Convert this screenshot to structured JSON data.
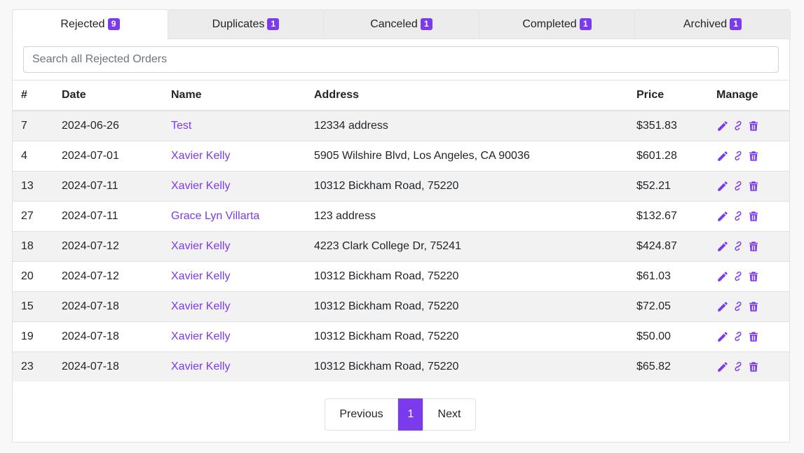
{
  "tabs": [
    {
      "label": "Rejected",
      "count": "9"
    },
    {
      "label": "Duplicates",
      "count": "1"
    },
    {
      "label": "Canceled",
      "count": "1"
    },
    {
      "label": "Completed",
      "count": "1"
    },
    {
      "label": "Archived",
      "count": "1"
    }
  ],
  "search": {
    "placeholder": "Search all Rejected Orders"
  },
  "table": {
    "headers": {
      "id": "#",
      "date": "Date",
      "name": "Name",
      "address": "Address",
      "price": "Price",
      "manage": "Manage"
    },
    "rows": [
      {
        "id": "7",
        "date": "2024-06-26",
        "name": "Test",
        "address": "12334 address",
        "price": "$351.83"
      },
      {
        "id": "4",
        "date": "2024-07-01",
        "name": "Xavier Kelly",
        "address": "5905 Wilshire Blvd, Los Angeles, CA 90036",
        "price": "$601.28"
      },
      {
        "id": "13",
        "date": "2024-07-11",
        "name": "Xavier Kelly",
        "address": "10312 Bickham Road, 75220",
        "price": "$52.21"
      },
      {
        "id": "27",
        "date": "2024-07-11",
        "name": "Grace Lyn Villarta",
        "address": "123 address",
        "price": "$132.67"
      },
      {
        "id": "18",
        "date": "2024-07-12",
        "name": "Xavier Kelly",
        "address": "4223 Clark College Dr, 75241",
        "price": "$424.87"
      },
      {
        "id": "20",
        "date": "2024-07-12",
        "name": "Xavier Kelly",
        "address": "10312 Bickham Road, 75220",
        "price": "$61.03"
      },
      {
        "id": "15",
        "date": "2024-07-18",
        "name": "Xavier Kelly",
        "address": "10312 Bickham Road, 75220",
        "price": "$72.05"
      },
      {
        "id": "19",
        "date": "2024-07-18",
        "name": "Xavier Kelly",
        "address": "10312 Bickham Road, 75220",
        "price": "$50.00"
      },
      {
        "id": "23",
        "date": "2024-07-18",
        "name": "Xavier Kelly",
        "address": "10312 Bickham Road, 75220",
        "price": "$65.82"
      }
    ],
    "manage_icons": [
      "pencil-icon",
      "link-icon",
      "trash-icon"
    ]
  },
  "pagination": {
    "previous": "Previous",
    "current": "1",
    "next": "Next"
  },
  "colors": {
    "accent": "#7c3aed"
  }
}
